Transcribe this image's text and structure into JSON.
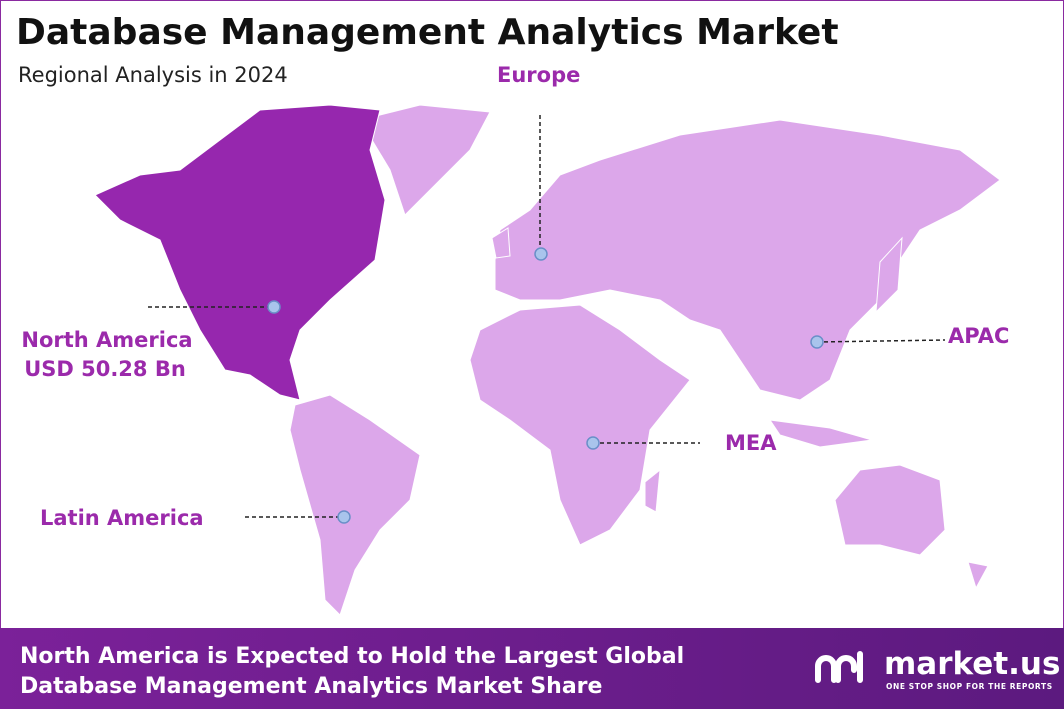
{
  "header": {
    "title": "Database Management Analytics Market",
    "subtitle": "Regional Analysis in 2024"
  },
  "regions": [
    {
      "label": "North America",
      "value": "USD 50.28 Bn"
    },
    {
      "label": "Europe"
    },
    {
      "label": "APAC"
    },
    {
      "label": "MEA"
    },
    {
      "label": "Latin America"
    }
  ],
  "footer": {
    "text": [
      "North America is Expected to Hold the Largest Global",
      "Database Management Analytics Market Share"
    ]
  },
  "logo": {
    "name": "market.us",
    "tagline": "ONE STOP SHOP FOR THE REPORTS"
  }
}
